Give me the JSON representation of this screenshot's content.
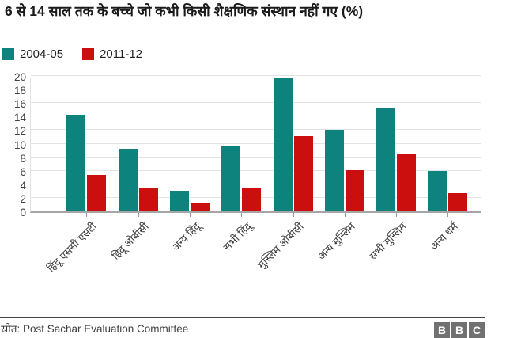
{
  "title": {
    "text": "6 से 14 साल तक के बच्चे जो कभी किसी शैक्षणिक संस्थान नहीं गए (%)"
  },
  "chart_data": {
    "type": "bar",
    "title": "6 से 14 साल तक के बच्चे जो कभी किसी शैक्षणिक संस्थान नहीं गए (%)",
    "categories": [
      "हिंदू एससी एसटी",
      "हिंदू ओबीसी",
      "अन्य हिंदू",
      "सभी हिंदू",
      "मुस्लिम ओबीसी",
      "अन्य मुस्लिम",
      "सभी मुस्लिम",
      "अन्य धर्म"
    ],
    "series": [
      {
        "name": "2004-05",
        "color": "#0e827d",
        "values": [
          14.4,
          9.3,
          3.1,
          9.7,
          19.9,
          12.2,
          15.4,
          6.0
        ]
      },
      {
        "name": "2011-12",
        "color": "#cb0e0e",
        "values": [
          5.4,
          3.5,
          1.2,
          3.6,
          11.3,
          6.2,
          8.7,
          2.7
        ]
      }
    ],
    "xlabel": "",
    "ylabel": "",
    "ylim": [
      0,
      20
    ],
    "yticks": [
      0,
      2,
      4,
      6,
      8,
      10,
      12,
      14,
      16,
      18,
      20
    ],
    "grid": true,
    "legend_position": "top-left"
  },
  "footer": {
    "source": "स्रोत: Post Sachar Evaluation Committee",
    "logo_letters": [
      "B",
      "B",
      "C"
    ]
  },
  "colors": {
    "series_2004_05": "#0e827d",
    "series_2011_12": "#cb0e0e",
    "axis_line": "#a6a6a6",
    "gridline": "#e3e3e3",
    "logo_gray": "#717171",
    "footer_rule": "#444444"
  }
}
